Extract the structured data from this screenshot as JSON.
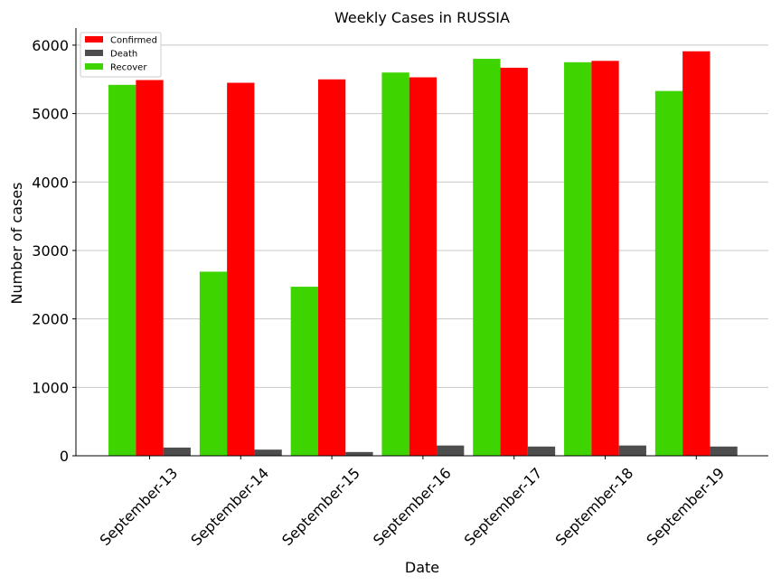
{
  "chart_data": {
    "type": "bar",
    "title": "Weekly Cases in RUSSIA",
    "xlabel": "Date",
    "ylabel": "Number of cases",
    "categories": [
      "September-13",
      "September-14",
      "September-15",
      "September-16",
      "September-17",
      "September-18",
      "September-19"
    ],
    "ylim": [
      0,
      6250
    ],
    "yticks": [
      0,
      1000,
      2000,
      3000,
      4000,
      5000,
      6000
    ],
    "grid": "horizontal",
    "legend_position": "top-left",
    "series": [
      {
        "name": "Recover",
        "color": "#3dd400",
        "values": [
          5420,
          2690,
          2470,
          5600,
          5800,
          5750,
          5330
        ]
      },
      {
        "name": "Confirmed",
        "color": "#ff0000",
        "values": [
          5490,
          5450,
          5500,
          5530,
          5670,
          5770,
          5910
        ]
      },
      {
        "name": "Death",
        "color": "#4d4d4d",
        "values": [
          120,
          90,
          55,
          150,
          135,
          150,
          135
        ]
      }
    ],
    "legend": [
      "Confirmed",
      "Death",
      "Recover"
    ]
  }
}
